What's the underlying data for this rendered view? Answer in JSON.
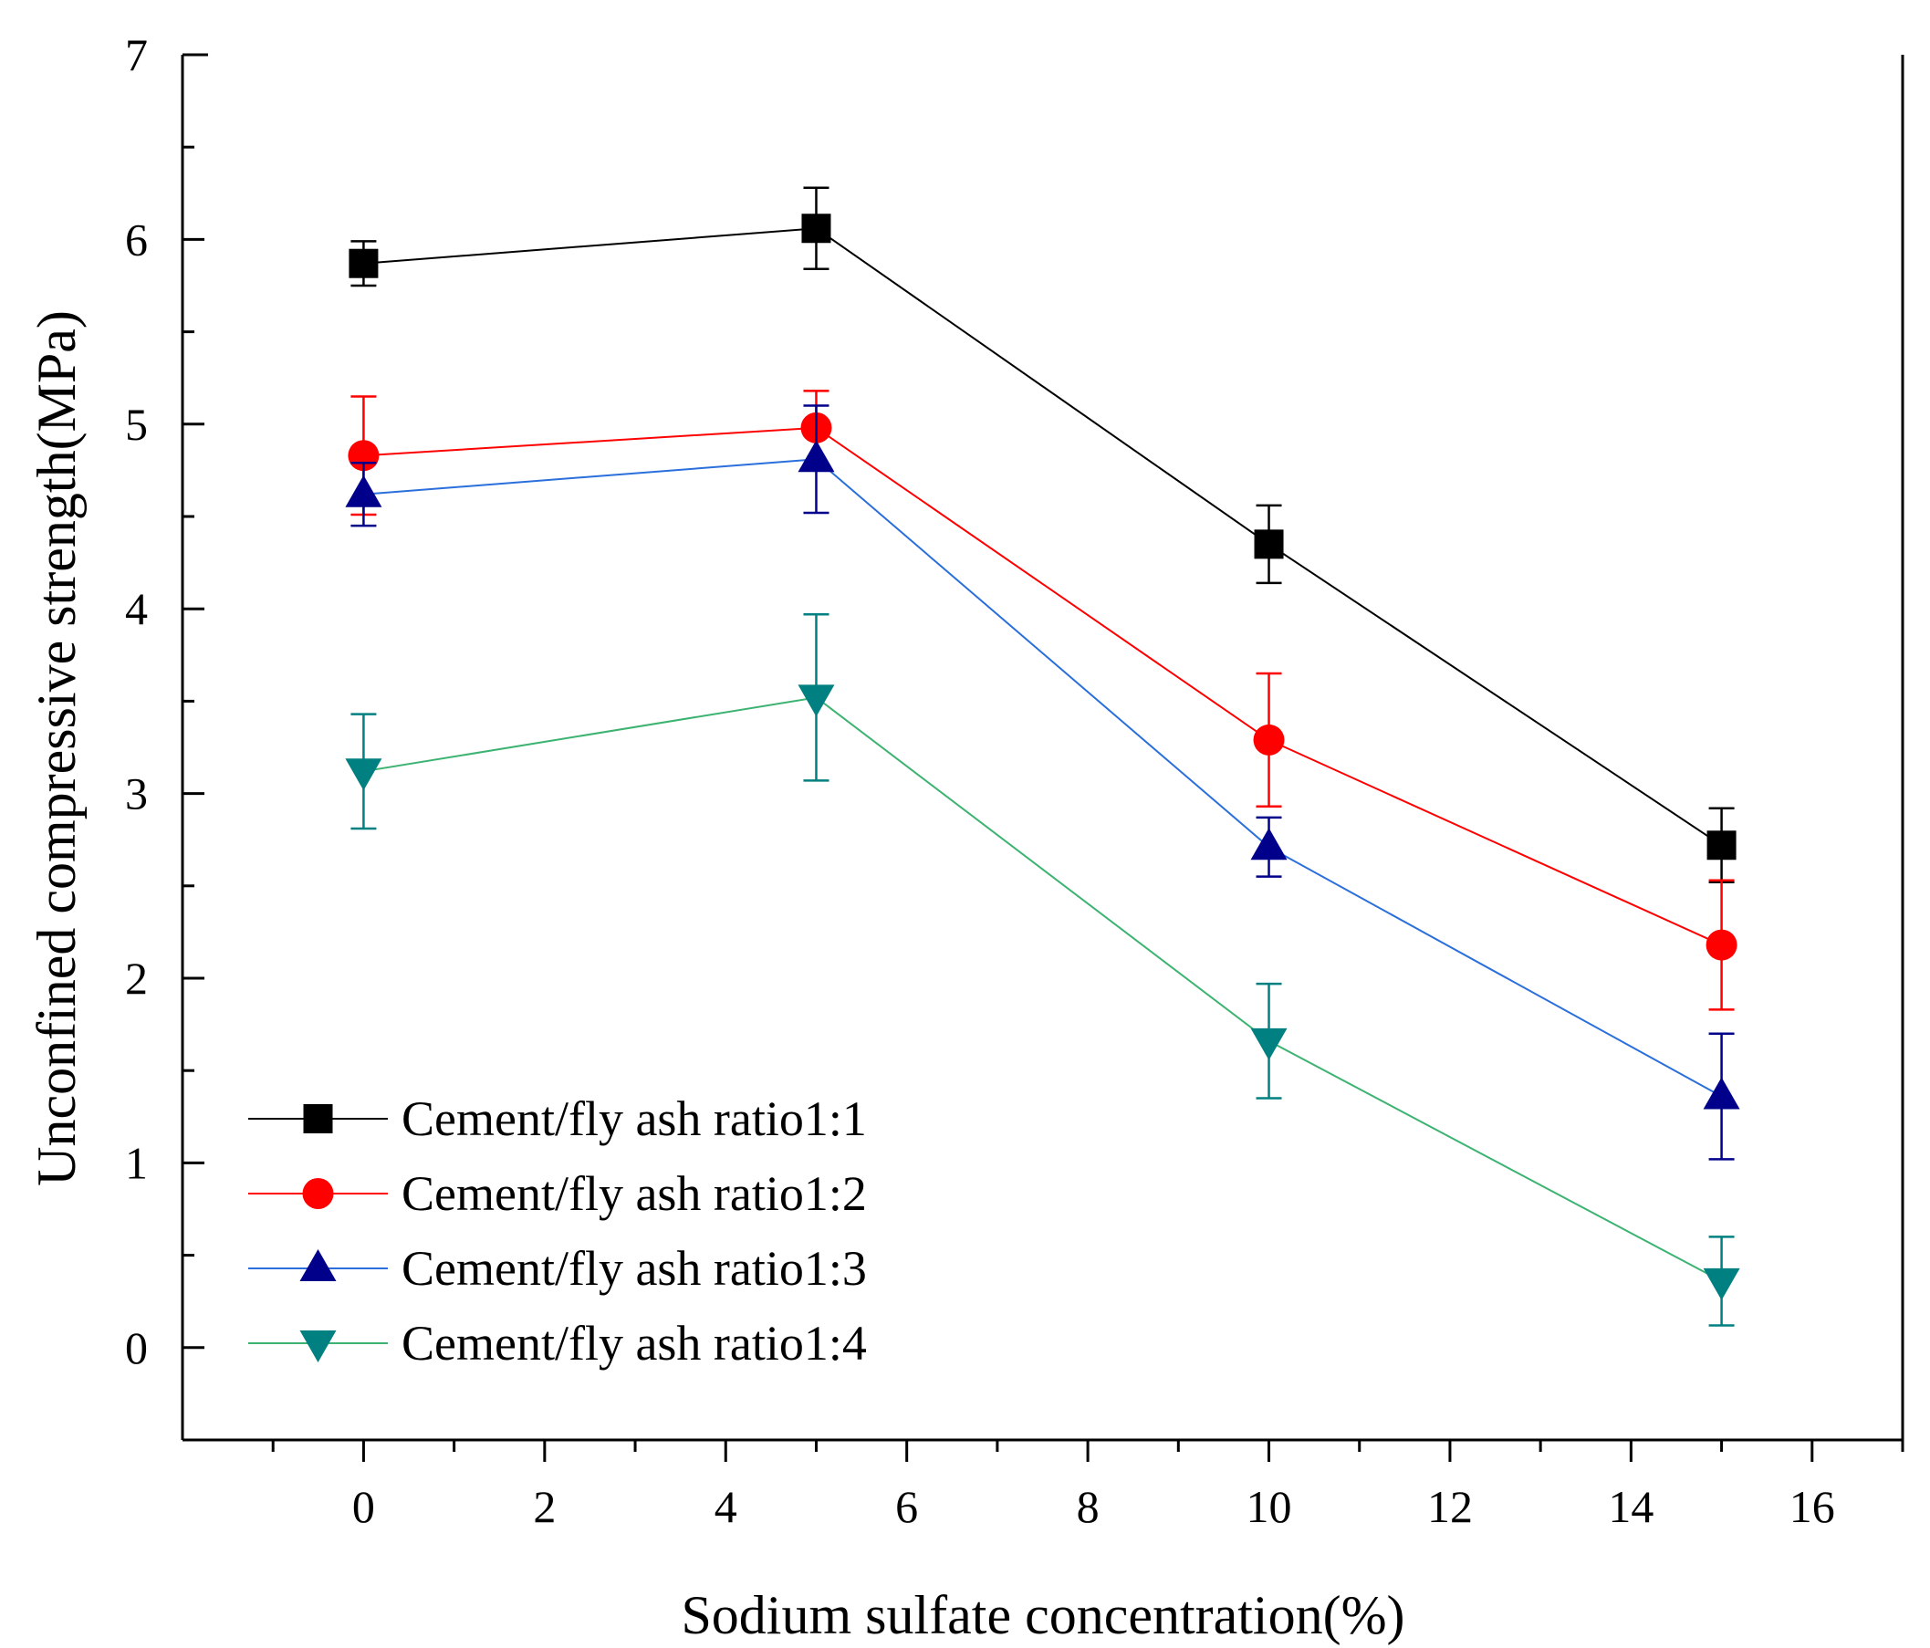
{
  "chart_data": {
    "type": "line",
    "title": "",
    "xlabel": "Sodium sulfate concentration(%)",
    "ylabel": "Unconfined compressive strength(MPa)",
    "xlim": [
      -2,
      17
    ],
    "ylim": [
      -0.5,
      7
    ],
    "xticks": [
      0,
      2,
      4,
      6,
      8,
      10,
      12,
      14,
      16
    ],
    "xtick_labels": [
      "0",
      "2",
      "4",
      "6",
      "8",
      "10",
      "12",
      "14",
      "16"
    ],
    "yticks": [
      0,
      1,
      2,
      3,
      4,
      5,
      6,
      7
    ],
    "ytick_labels": [
      "0",
      "1",
      "2",
      "3",
      "4",
      "5",
      "6",
      "7"
    ],
    "grid": false,
    "legend_position": "lower-left",
    "x": [
      0,
      5,
      10,
      15
    ],
    "series": [
      {
        "name": "Cement/fly ash ratio1:1",
        "values": [
          5.87,
          6.06,
          4.35,
          2.72
        ],
        "errors": [
          0.12,
          0.22,
          0.21,
          0.2
        ],
        "color": "#000000",
        "marker": "square"
      },
      {
        "name": "Cement/fly ash ratio1:2",
        "values": [
          4.83,
          4.98,
          3.29,
          2.18
        ],
        "errors": [
          0.32,
          0.2,
          0.36,
          0.35
        ],
        "color": "#ff0000",
        "marker": "circle"
      },
      {
        "name": "Cement/fly ash ratio1:3",
        "values": [
          4.62,
          4.81,
          2.71,
          1.36
        ],
        "errors": [
          0.17,
          0.29,
          0.16,
          0.34
        ],
        "color": "#00008b",
        "line_color": "#2a6fdb",
        "marker": "triangle-up"
      },
      {
        "name": "Cement/fly ash ratio1:4",
        "values": [
          3.12,
          3.52,
          1.66,
          0.36
        ],
        "errors": [
          0.31,
          0.45,
          0.31,
          0.24
        ],
        "color": "#008080",
        "line_color": "#3cb371",
        "marker": "triangle-down"
      }
    ]
  }
}
